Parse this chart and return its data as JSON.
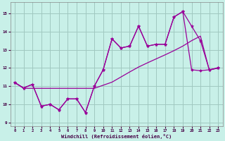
{
  "xlabel": "Windchill (Refroidissement éolien,°C)",
  "bg_color": "#c8f0e8",
  "grid_color": "#a0c8c0",
  "line_color": "#990099",
  "xlim": [
    -0.5,
    23.5
  ],
  "ylim": [
    8.8,
    15.6
  ],
  "yticks": [
    9,
    10,
    11,
    12,
    13,
    14,
    15
  ],
  "xticks": [
    0,
    1,
    2,
    3,
    4,
    5,
    6,
    7,
    8,
    9,
    10,
    11,
    12,
    13,
    14,
    15,
    16,
    17,
    18,
    19,
    20,
    21,
    22,
    23
  ],
  "s1_x": [
    0,
    1,
    2,
    3,
    4,
    5,
    6,
    7,
    8,
    9,
    10,
    11,
    12,
    13,
    14,
    15,
    16,
    17,
    18,
    19,
    20,
    21,
    22,
    23
  ],
  "s1_y": [
    11.2,
    10.9,
    11.1,
    9.9,
    10.0,
    9.7,
    10.3,
    10.3,
    9.55,
    11.0,
    11.9,
    13.6,
    13.1,
    13.2,
    14.3,
    13.2,
    13.3,
    13.3,
    14.8,
    15.1,
    14.3,
    13.5,
    11.9,
    12.0
  ],
  "s2_x": [
    0,
    1,
    2,
    3,
    4,
    5,
    6,
    7,
    8,
    9,
    10,
    11,
    12,
    13,
    14,
    15,
    16,
    17,
    18,
    19,
    20,
    21,
    22,
    23
  ],
  "s2_y": [
    11.2,
    10.9,
    11.1,
    9.9,
    10.0,
    9.7,
    10.3,
    10.3,
    9.55,
    11.0,
    11.9,
    13.6,
    13.1,
    13.2,
    14.3,
    13.2,
    13.3,
    13.3,
    14.8,
    15.1,
    11.9,
    11.85,
    11.9,
    12.0
  ],
  "s3_x": [
    0,
    1,
    2,
    3,
    4,
    5,
    6,
    7,
    8,
    9,
    10,
    11,
    12,
    13,
    14,
    15,
    16,
    17,
    18,
    19,
    20,
    21,
    22,
    23
  ],
  "s3_y": [
    11.2,
    10.88,
    10.88,
    10.88,
    10.88,
    10.88,
    10.88,
    10.88,
    10.88,
    10.88,
    11.05,
    11.22,
    11.5,
    11.78,
    12.05,
    12.28,
    12.5,
    12.72,
    12.95,
    13.2,
    13.5,
    13.75,
    11.88,
    12.0
  ]
}
